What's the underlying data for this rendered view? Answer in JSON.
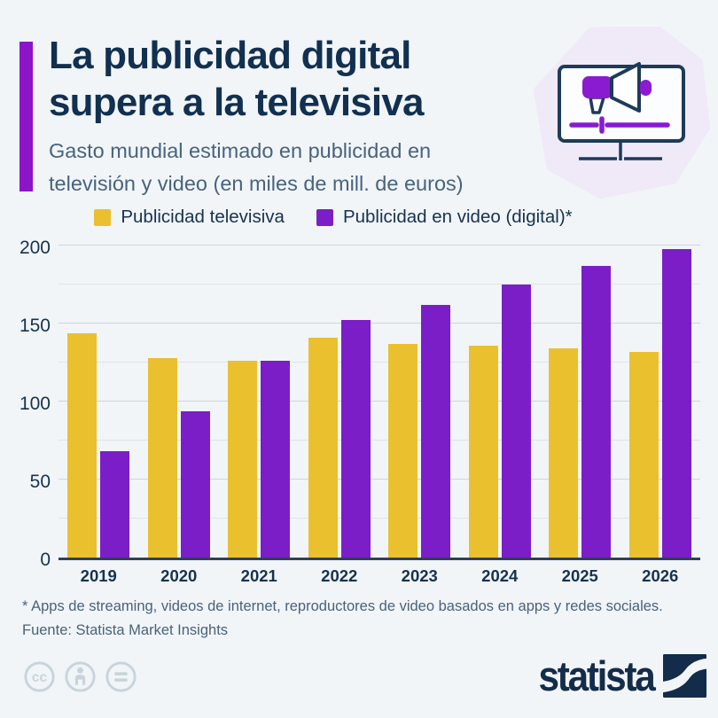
{
  "header": {
    "title_line1": "La publicidad digital",
    "title_line2": "supera a la televisiva",
    "subtitle_line1": "Gasto mundial estimado en publicidad en",
    "subtitle_line2": "televisión y video (en miles de mill. de euros)"
  },
  "legend": {
    "tv_label": "Publicidad televisiva",
    "video_label": "Publicidad en video (digital)*"
  },
  "chart_data": {
    "type": "bar",
    "categories": [
      "2019",
      "2020",
      "2021",
      "2022",
      "2023",
      "2024",
      "2025",
      "2026"
    ],
    "series": [
      {
        "key": "tv",
        "name": "Publicidad televisiva",
        "color": "#eac02e",
        "values": [
          144,
          128,
          126,
          141,
          137,
          136,
          134,
          132
        ]
      },
      {
        "key": "video",
        "name": "Publicidad en video (digital)",
        "color": "#7b1ec8",
        "values": [
          68,
          94,
          126,
          152,
          162,
          175,
          187,
          198
        ]
      }
    ],
    "title": "Gasto mundial estimado en publicidad en televisión y video (en miles de mill. de euros)",
    "xlabel": "",
    "ylabel": "",
    "ylim": [
      0,
      200
    ],
    "yticks": [
      0,
      50,
      100,
      150,
      200
    ],
    "gridline_step": 25,
    "grid": true,
    "legend_position": "top"
  },
  "footer": {
    "footnote": "* Apps de streaming, videos de internet, reproductores de video basados en apps y redes sociales.",
    "source": "Fuente: Statista Market Insights"
  },
  "branding": {
    "logo_text": "statista"
  },
  "icons": {
    "hero": "monitor-megaphone-video-ad-icon",
    "license": [
      "cc-icon",
      "attribution-person-icon",
      "equals-icon"
    ],
    "logo_mark": "statista-swoosh-icon"
  },
  "colors": {
    "background": "#f1f5f8",
    "navy": "#16324f",
    "accent_purple": "#8c14c9",
    "tv_yellow": "#eac02e",
    "video_purple": "#7b1ec8",
    "blob_lavender": "#f0e9f8"
  }
}
